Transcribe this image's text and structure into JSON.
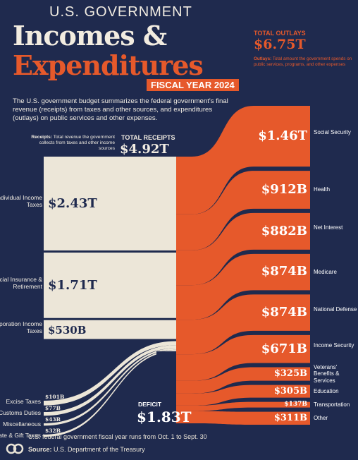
{
  "header": {
    "title_small": "U.S. GOVERNMENT",
    "title_line1": "Incomes &",
    "title_line2": "Expenditures",
    "fiscal_year": "FISCAL YEAR 2024",
    "intro": "The U.S. government budget summarizes the federal government's final revenue (receipts) from taxes and other sources, and expenditures (outlays) on public services and other expenses."
  },
  "outlays": {
    "label": "TOTAL OUTLAYS",
    "total": "$6.75T",
    "note_term": "Outlays:",
    "note": "Total amount the government spends on public services, programs, and other expenses"
  },
  "receipts": {
    "label": "TOTAL RECEIPTS",
    "total": "$4.92T",
    "note_term": "Receipts:",
    "note": "Total revenue the government collects from taxes and other income sources"
  },
  "deficit": {
    "label": "DEFICIT",
    "total": "$1.83T"
  },
  "footer": {
    "footnote": "U.S. federal government fiscal year runs from Oct. 1 to Sept. 30",
    "source_label": "Source:",
    "source": "U.S. Department of the Treasury"
  },
  "colors": {
    "background": "#1f2a4e",
    "income": "#ece6d8",
    "expense": "#e6592b",
    "text_light": "#f1ece2"
  },
  "chart_data": {
    "type": "sankey",
    "title": "U.S. Government Incomes & Expenditures, Fiscal Year 2024",
    "receipts": [
      {
        "name": "Individual Income Taxes",
        "value": 2.43,
        "label": "$2.43T"
      },
      {
        "name": "Social Insurance & Retirement",
        "value": 1.71,
        "label": "$1.71T"
      },
      {
        "name": "Corporation Income Taxes",
        "value": 0.53,
        "label": "$530B"
      },
      {
        "name": "Excise Taxes",
        "value": 0.101,
        "label": "$101B"
      },
      {
        "name": "Customs Duties",
        "value": 0.077,
        "label": "$77B"
      },
      {
        "name": "Miscellaneous",
        "value": 0.043,
        "label": "$43B"
      },
      {
        "name": "Estate & Gift Taxes",
        "value": 0.032,
        "label": "$32B"
      }
    ],
    "outlays": [
      {
        "name": "Social Security",
        "value": 1.46,
        "label": "$1.46T"
      },
      {
        "name": "Health",
        "value": 0.912,
        "label": "$912B"
      },
      {
        "name": "Net Interest",
        "value": 0.882,
        "label": "$882B"
      },
      {
        "name": "Medicare",
        "value": 0.874,
        "label": "$874B"
      },
      {
        "name": "National Defense",
        "value": 0.874,
        "label": "$874B"
      },
      {
        "name": "Income Security",
        "value": 0.671,
        "label": "$671B"
      },
      {
        "name": "Veterans' Benefits & Services",
        "value": 0.325,
        "label": "$325B"
      },
      {
        "name": "Education",
        "value": 0.305,
        "label": "$305B"
      },
      {
        "name": "Transportation",
        "value": 0.137,
        "label": "$137B"
      },
      {
        "name": "Other",
        "value": 0.311,
        "label": "$311B"
      }
    ],
    "units": "USD trillions"
  }
}
